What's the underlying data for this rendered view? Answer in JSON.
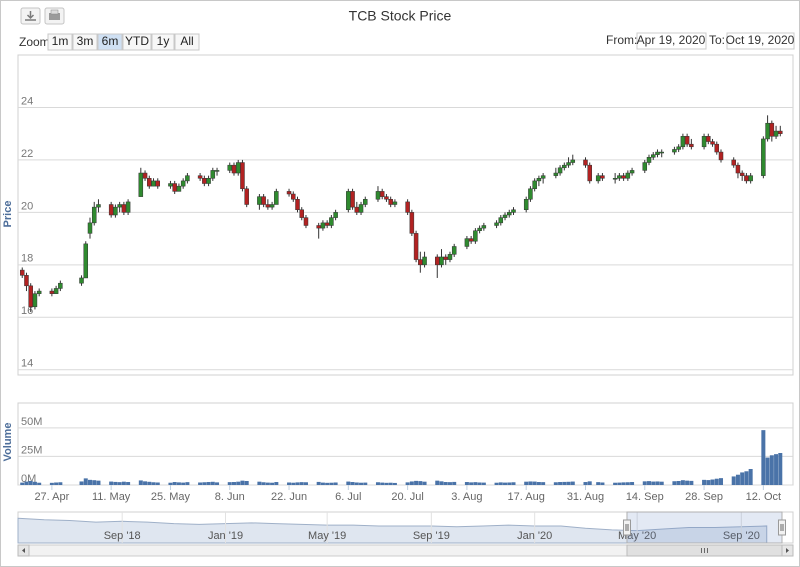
{
  "chart_data": {
    "type": "candlestick",
    "title": "TCB Stock Price",
    "y_label": "Price",
    "volume_label": "Volume",
    "x": [
      "2020-04-20",
      "2020-04-21",
      "2020-04-22",
      "2020-04-23",
      "2020-04-24",
      "2020-04-27",
      "2020-04-28",
      "2020-04-29",
      "2020-05-04",
      "2020-05-05",
      "2020-05-06",
      "2020-05-07",
      "2020-05-08",
      "2020-05-11",
      "2020-05-12",
      "2020-05-13",
      "2020-05-14",
      "2020-05-15",
      "2020-05-18",
      "2020-05-19",
      "2020-05-20",
      "2020-05-21",
      "2020-05-22",
      "2020-05-25",
      "2020-05-26",
      "2020-05-27",
      "2020-05-28",
      "2020-05-29",
      "2020-06-01",
      "2020-06-02",
      "2020-06-03",
      "2020-06-04",
      "2020-06-05",
      "2020-06-08",
      "2020-06-09",
      "2020-06-10",
      "2020-06-11",
      "2020-06-12",
      "2020-06-15",
      "2020-06-16",
      "2020-06-17",
      "2020-06-18",
      "2020-06-19",
      "2020-06-22",
      "2020-06-23",
      "2020-06-24",
      "2020-06-25",
      "2020-06-26",
      "2020-06-29",
      "2020-06-30",
      "2020-07-01",
      "2020-07-02",
      "2020-07-03",
      "2020-07-06",
      "2020-07-07",
      "2020-07-08",
      "2020-07-09",
      "2020-07-10",
      "2020-07-13",
      "2020-07-14",
      "2020-07-15",
      "2020-07-16",
      "2020-07-17",
      "2020-07-20",
      "2020-07-21",
      "2020-07-22",
      "2020-07-23",
      "2020-07-24",
      "2020-07-27",
      "2020-07-28",
      "2020-07-29",
      "2020-07-30",
      "2020-07-31",
      "2020-08-03",
      "2020-08-04",
      "2020-08-05",
      "2020-08-06",
      "2020-08-07",
      "2020-08-10",
      "2020-08-11",
      "2020-08-12",
      "2020-08-13",
      "2020-08-14",
      "2020-08-17",
      "2020-08-18",
      "2020-08-19",
      "2020-08-20",
      "2020-08-21",
      "2020-08-24",
      "2020-08-25",
      "2020-08-26",
      "2020-08-27",
      "2020-08-28",
      "2020-08-31",
      "2020-09-01",
      "2020-09-03",
      "2020-09-04",
      "2020-09-07",
      "2020-09-08",
      "2020-09-09",
      "2020-09-10",
      "2020-09-11",
      "2020-09-14",
      "2020-09-15",
      "2020-09-16",
      "2020-09-17",
      "2020-09-18",
      "2020-09-21",
      "2020-09-22",
      "2020-09-23",
      "2020-09-24",
      "2020-09-25",
      "2020-09-28",
      "2020-09-29",
      "2020-09-30",
      "2020-10-01",
      "2020-10-02",
      "2020-10-05",
      "2020-10-06",
      "2020-10-07",
      "2020-10-08",
      "2020-10-09",
      "2020-10-12",
      "2020-10-13",
      "2020-10-14",
      "2020-10-15",
      "2020-10-16"
    ],
    "open": [
      17.8,
      17.6,
      17.2,
      16.4,
      16.9,
      17.0,
      16.9,
      17.1,
      17.3,
      17.5,
      19.2,
      19.6,
      20.2,
      20.3,
      19.9,
      20.2,
      20.3,
      20.0,
      20.6,
      21.5,
      21.3,
      21.0,
      21.2,
      21.0,
      21.1,
      20.8,
      21.0,
      21.2,
      21.4,
      21.3,
      21.1,
      21.3,
      21.6,
      21.6,
      21.8,
      21.5,
      21.9,
      20.9,
      20.3,
      20.6,
      20.3,
      20.2,
      20.3,
      20.8,
      20.7,
      20.5,
      20.1,
      19.8,
      19.5,
      19.4,
      19.6,
      19.5,
      19.8,
      20.1,
      20.8,
      20.2,
      20.0,
      20.3,
      20.5,
      20.8,
      20.6,
      20.5,
      20.3,
      20.4,
      20.0,
      19.2,
      18.2,
      18.0,
      18.3,
      18.0,
      18.3,
      18.2,
      18.4,
      18.7,
      19.0,
      18.9,
      19.3,
      19.4,
      19.5,
      19.6,
      19.8,
      19.9,
      20.0,
      20.1,
      20.5,
      20.9,
      21.2,
      21.3,
      21.4,
      21.5,
      21.7,
      21.8,
      21.9,
      22.0,
      21.8,
      21.2,
      21.4,
      21.3,
      21.3,
      21.4,
      21.3,
      21.5,
      21.6,
      21.9,
      22.1,
      22.2,
      22.3,
      22.3,
      22.4,
      22.5,
      22.9,
      22.6,
      22.5,
      22.9,
      22.7,
      22.6,
      22.3,
      22.0,
      21.8,
      21.5,
      21.4,
      21.2,
      21.4,
      22.8,
      23.4,
      22.9,
      23.1
    ],
    "high": [
      17.9,
      17.7,
      17.3,
      17.0,
      17.1,
      17.1,
      17.2,
      17.4,
      17.6,
      18.9,
      19.8,
      20.4,
      20.5,
      20.4,
      20.3,
      20.4,
      20.4,
      20.5,
      21.7,
      21.6,
      21.4,
      21.3,
      21.3,
      21.2,
      21.2,
      21.1,
      21.3,
      21.5,
      21.5,
      21.4,
      21.4,
      21.7,
      21.7,
      21.9,
      21.9,
      22.0,
      22.0,
      21.0,
      20.7,
      20.7,
      20.5,
      20.4,
      20.9,
      20.9,
      20.8,
      20.6,
      20.2,
      19.9,
      19.6,
      19.7,
      19.7,
      19.9,
      20.1,
      20.9,
      20.9,
      20.4,
      20.4,
      20.6,
      21.0,
      20.9,
      20.7,
      20.6,
      20.5,
      20.5,
      20.1,
      19.3,
      18.5,
      18.5,
      18.4,
      18.6,
      18.4,
      18.5,
      18.8,
      19.1,
      19.1,
      19.4,
      19.5,
      19.6,
      19.7,
      19.9,
      20.0,
      20.1,
      20.2,
      20.6,
      21.0,
      21.3,
      21.4,
      21.5,
      21.7,
      21.8,
      21.9,
      22.1,
      22.2,
      22.1,
      21.9,
      21.5,
      21.5,
      21.5,
      21.5,
      21.5,
      21.6,
      21.7,
      22.0,
      22.2,
      22.3,
      22.4,
      22.4,
      22.5,
      22.6,
      23.0,
      23.0,
      22.8,
      23.0,
      23.0,
      22.8,
      22.7,
      22.4,
      22.1,
      21.9,
      21.6,
      21.5,
      21.5,
      22.9,
      23.7,
      23.5,
      23.3,
      23.3
    ],
    "low": [
      17.5,
      17.0,
      16.2,
      16.3,
      16.8,
      16.8,
      16.9,
      17.0,
      17.2,
      17.5,
      19.0,
      19.5,
      20.0,
      19.8,
      19.8,
      20.0,
      19.9,
      19.9,
      20.6,
      21.2,
      20.9,
      21.0,
      20.9,
      20.9,
      20.7,
      20.8,
      20.9,
      21.1,
      21.2,
      21.0,
      21.0,
      21.2,
      21.4,
      21.5,
      21.4,
      21.4,
      20.8,
      20.2,
      20.1,
      20.2,
      20.1,
      20.1,
      20.3,
      20.6,
      20.4,
      20.0,
      19.7,
      19.4,
      19.0,
      19.3,
      19.4,
      19.4,
      19.7,
      20.0,
      20.1,
      19.9,
      19.9,
      20.2,
      20.4,
      20.5,
      20.4,
      20.2,
      20.2,
      19.9,
      19.1,
      18.1,
      17.7,
      17.9,
      17.5,
      17.9,
      18.0,
      18.1,
      18.3,
      18.6,
      18.8,
      18.8,
      19.2,
      19.3,
      19.4,
      19.5,
      19.7,
      19.8,
      19.9,
      20.0,
      20.4,
      20.8,
      21.0,
      21.1,
      21.3,
      21.4,
      21.6,
      21.7,
      21.8,
      21.7,
      21.1,
      21.1,
      21.2,
      21.1,
      21.2,
      21.2,
      21.2,
      21.4,
      21.5,
      21.8,
      22.0,
      22.1,
      22.1,
      22.2,
      22.3,
      22.4,
      22.5,
      22.4,
      22.4,
      22.6,
      22.5,
      22.2,
      21.9,
      21.7,
      21.3,
      21.2,
      21.1,
      21.1,
      21.3,
      22.7,
      22.7,
      22.8,
      22.9
    ],
    "close": [
      17.6,
      17.2,
      16.4,
      16.9,
      17.0,
      16.9,
      17.1,
      17.3,
      17.5,
      18.8,
      19.6,
      20.2,
      20.3,
      19.9,
      20.2,
      20.3,
      20.0,
      20.4,
      21.5,
      21.3,
      21.0,
      21.2,
      21.0,
      21.1,
      20.8,
      21.0,
      21.2,
      21.4,
      21.3,
      21.1,
      21.3,
      21.6,
      21.6,
      21.8,
      21.5,
      21.9,
      20.9,
      20.3,
      20.6,
      20.3,
      20.2,
      20.3,
      20.8,
      20.7,
      20.5,
      20.1,
      19.8,
      19.5,
      19.4,
      19.6,
      19.5,
      19.8,
      20.0,
      20.8,
      20.2,
      20.0,
      20.3,
      20.5,
      20.8,
      20.6,
      20.5,
      20.3,
      20.4,
      20.0,
      19.2,
      18.2,
      18.0,
      18.3,
      18.0,
      18.3,
      18.2,
      18.4,
      18.7,
      19.0,
      18.9,
      19.3,
      19.4,
      19.5,
      19.6,
      19.8,
      19.9,
      20.0,
      20.1,
      20.5,
      20.9,
      21.2,
      21.3,
      21.4,
      21.5,
      21.7,
      21.8,
      21.9,
      22.0,
      21.8,
      21.2,
      21.4,
      21.3,
      21.3,
      21.4,
      21.3,
      21.5,
      21.6,
      21.9,
      22.1,
      22.2,
      22.3,
      22.3,
      22.4,
      22.5,
      22.9,
      22.6,
      22.5,
      22.9,
      22.7,
      22.6,
      22.3,
      22.0,
      21.8,
      21.5,
      21.4,
      21.2,
      21.4,
      22.8,
      23.4,
      22.9,
      23.1,
      23.0
    ],
    "volume": [
      2100000.0,
      3000000.0,
      3500000.0,
      2800000.0,
      2000000.0,
      1900000.0,
      2200000.0,
      2400000.0,
      3100000.0,
      5800000.0,
      4500000.0,
      4200000.0,
      3800000.0,
      3000000.0,
      2700000.0,
      2500000.0,
      2900000.0,
      2600000.0,
      4000000.0,
      3200000.0,
      2800000.0,
      2400000.0,
      2200000.0,
      2000000.0,
      2600000.0,
      2300000.0,
      2100000.0,
      2500000.0,
      2200000.0,
      2400000.0,
      2600000.0,
      2800000.0,
      2300000.0,
      2500000.0,
      2600000.0,
      2900000.0,
      3800000.0,
      3500000.0,
      2900000.0,
      2400000.0,
      2100000.0,
      2000000.0,
      2600000.0,
      2200000.0,
      2000000.0,
      2300000.0,
      2500000.0,
      2400000.0,
      2700000.0,
      2100000.0,
      1900000.0,
      2000000.0,
      2200000.0,
      3000000.0,
      2600000.0,
      2200000.0,
      2000000.0,
      2100000.0,
      2400000.0,
      2100000.0,
      1900000.0,
      2000000.0,
      1800000.0,
      2300000.0,
      3100000.0,
      3600000.0,
      3400000.0,
      2900000.0,
      3800000.0,
      3200000.0,
      2600000.0,
      2500000.0,
      2700000.0,
      2600000.0,
      2300000.0,
      2500000.0,
      2200000.0,
      2100000.0,
      2000000.0,
      2300000.0,
      2100000.0,
      2200000.0,
      2400000.0,
      2900000.0,
      3100000.0,
      3000000.0,
      2600000.0,
      2500000.0,
      2400000.0,
      2600000.0,
      2700000.0,
      2800000.0,
      3000000.0,
      2600000.0,
      3200000.0,
      2500000.0,
      2200000.0,
      2000000.0,
      2100000.0,
      2300000.0,
      2400000.0,
      2600000.0,
      3200000.0,
      3400000.0,
      3000000.0,
      3100000.0,
      2900000.0,
      3300000.0,
      3500000.0,
      4200000.0,
      3800000.0,
      3600000.0,
      4500000.0,
      4300000.0,
      4800000.0,
      5500000.0,
      6000000.0,
      7500000.0,
      9000000.0,
      11000000.0,
      12000000.0,
      14000000.0,
      48000000.0,
      24000000.0,
      26000000.0,
      27000000.0,
      28000000.0
    ],
    "up_color": "#2f8a2f",
    "down_color": "#b22222",
    "volume_color": "#4a73a8",
    "grid": true,
    "xlim": [
      "2020-04-19",
      "2020-10-19"
    ],
    "xticks": [
      {
        "value": "2020-04-27",
        "label": "27. Apr"
      },
      {
        "value": "2020-05-11",
        "label": "11. May"
      },
      {
        "value": "2020-05-25",
        "label": "25. May"
      },
      {
        "value": "2020-06-08",
        "label": "8. Jun"
      },
      {
        "value": "2020-06-22",
        "label": "22. Jun"
      },
      {
        "value": "2020-07-06",
        "label": "6. Jul"
      },
      {
        "value": "2020-07-20",
        "label": "20. Jul"
      },
      {
        "value": "2020-08-03",
        "label": "3. Aug"
      },
      {
        "value": "2020-08-17",
        "label": "17. Aug"
      },
      {
        "value": "2020-08-31",
        "label": "31. Aug"
      },
      {
        "value": "2020-09-14",
        "label": "14. Sep"
      },
      {
        "value": "2020-09-28",
        "label": "28. Sep"
      },
      {
        "value": "2020-10-12",
        "label": "12. Oct"
      }
    ],
    "ylim": [
      13.8,
      26
    ],
    "yticks": [
      14,
      16,
      18,
      20,
      22,
      24
    ],
    "volume_ylim": [
      0,
      70000000
    ],
    "volume_yticks": [
      {
        "value": 0,
        "label": "0M"
      },
      {
        "value": 25000000,
        "label": "25M"
      },
      {
        "value": 50000000,
        "label": "50M"
      }
    ],
    "navigator": {
      "color": "#c9d5e6",
      "x": [
        "2018-05",
        "2018-06",
        "2018-07",
        "2018-08",
        "2018-09",
        "2018-10",
        "2018-11",
        "2018-12",
        "2019-01",
        "2019-02",
        "2019-03",
        "2019-04",
        "2019-05",
        "2019-06",
        "2019-07",
        "2019-08",
        "2019-09",
        "2019-10",
        "2019-11",
        "2019-12",
        "2020-01",
        "2020-02",
        "2020-03",
        "2020-04",
        "2020-05",
        "2020-06",
        "2020-07",
        "2020-08",
        "2020-09",
        "2020-10"
      ],
      "values": [
        32,
        30,
        29,
        27,
        28,
        27,
        25,
        24,
        25,
        26,
        25,
        24,
        23,
        23,
        22,
        22,
        22,
        21,
        22,
        23,
        22,
        22,
        19,
        17,
        16,
        18,
        20,
        20,
        21,
        22
      ],
      "xlim": [
        "2018-05",
        "2020-11"
      ],
      "ylim": [
        0,
        40
      ],
      "xticks": [
        {
          "value": "2018-09",
          "label": "Sep '18"
        },
        {
          "value": "2019-01",
          "label": "Jan '19"
        },
        {
          "value": "2019-05",
          "label": "May '19"
        },
        {
          "value": "2019-09",
          "label": "Sep '19"
        },
        {
          "value": "2020-01",
          "label": "Jan '20"
        },
        {
          "value": "2020-05",
          "label": "May '20"
        },
        {
          "value": "2020-09",
          "label": "Sep '20"
        }
      ]
    }
  },
  "ui": {
    "zoom_label": "Zoom",
    "range_buttons": [
      "1m",
      "3m",
      "6m",
      "YTD",
      "1y",
      "All"
    ],
    "selected_button": 2,
    "from_label": "From:",
    "from_value": "Apr 19, 2020",
    "to_label": "To:",
    "to_value": "Oct 19, 2020"
  }
}
